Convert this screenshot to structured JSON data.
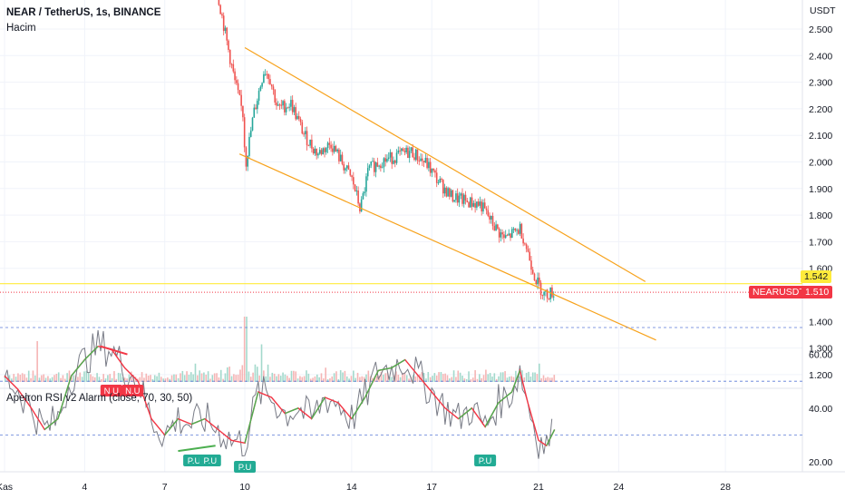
{
  "header": {
    "title": "NEAR / TetherUS, 1s, BINANCE",
    "volume_label": "Hacim",
    "rsi_title": "Apeiron RSI v2 Alarm (close, 70, 30, 50)"
  },
  "price_axis": {
    "unit": "USDT",
    "ticks": [
      "2.500",
      "2.400",
      "2.300",
      "2.200",
      "2.100",
      "2.000",
      "1.900",
      "1.800",
      "1.700",
      "1.600",
      "1.400",
      "1.300",
      "1.200"
    ],
    "tick_values": [
      2.5,
      2.4,
      2.3,
      2.2,
      2.1,
      2.0,
      1.9,
      1.8,
      1.7,
      1.6,
      1.4,
      1.3,
      1.2
    ]
  },
  "price_tags": {
    "level_value": "1.542",
    "current_symbol": "NEARUSDT",
    "current_value": "1.510",
    "level_color": "#ffeb3b",
    "current_color": "#f23645"
  },
  "rsi_axis": {
    "ticks": [
      "60.00",
      "40.00",
      "20.00"
    ],
    "tick_values": [
      60,
      40,
      20
    ],
    "levels": [
      70,
      50,
      30
    ]
  },
  "time_axis": {
    "labels": [
      "Kas",
      "4",
      "7",
      "10",
      "14",
      "17",
      "21",
      "24",
      "28"
    ],
    "days": [
      1,
      4,
      7,
      10,
      14,
      17,
      21,
      24,
      28
    ]
  },
  "signals": {
    "bear_label": "N.U",
    "bull_label": "P.U",
    "bear_color": "#f23645",
    "bull_color": "#22ab94"
  },
  "chart_data": {
    "type": "candlestick",
    "title": "NEAR / TetherUS, 1s, BINANCE",
    "x_unit": "day of November",
    "y_unit": "USDT",
    "ylim": [
      1.15,
      2.61
    ],
    "price_path": [
      {
        "x": 9.0,
        "y": 2.61
      },
      {
        "x": 9.3,
        "y": 2.45
      },
      {
        "x": 9.6,
        "y": 2.3
      },
      {
        "x": 9.9,
        "y": 2.18
      },
      {
        "x": 10.0,
        "y": 1.99
      },
      {
        "x": 10.3,
        "y": 2.18
      },
      {
        "x": 10.7,
        "y": 2.35
      },
      {
        "x": 10.9,
        "y": 2.32
      },
      {
        "x": 11.2,
        "y": 2.2
      },
      {
        "x": 11.7,
        "y": 2.22
      },
      {
        "x": 12.2,
        "y": 2.1
      },
      {
        "x": 12.7,
        "y": 2.03
      },
      {
        "x": 13.2,
        "y": 2.07
      },
      {
        "x": 13.6,
        "y": 2.0
      },
      {
        "x": 14.0,
        "y": 1.93
      },
      {
        "x": 14.3,
        "y": 1.82
      },
      {
        "x": 14.6,
        "y": 1.97
      },
      {
        "x": 15.0,
        "y": 2.0
      },
      {
        "x": 15.6,
        "y": 2.02
      },
      {
        "x": 16.2,
        "y": 2.04
      },
      {
        "x": 16.8,
        "y": 1.99
      },
      {
        "x": 17.2,
        "y": 1.93
      },
      {
        "x": 17.7,
        "y": 1.87
      },
      {
        "x": 18.3,
        "y": 1.85
      },
      {
        "x": 18.8,
        "y": 1.84
      },
      {
        "x": 19.3,
        "y": 1.76
      },
      {
        "x": 19.7,
        "y": 1.71
      },
      {
        "x": 20.3,
        "y": 1.75
      },
      {
        "x": 20.6,
        "y": 1.65
      },
      {
        "x": 20.9,
        "y": 1.55
      },
      {
        "x": 21.2,
        "y": 1.5
      },
      {
        "x": 21.5,
        "y": 1.51
      }
    ],
    "trendlines": [
      {
        "name": "upper",
        "color": "#f7a21b",
        "from": {
          "x": 10.0,
          "y": 2.43
        },
        "to": {
          "x": 25.0,
          "y": 1.55
        }
      },
      {
        "name": "lower",
        "color": "#f7a21b",
        "from": {
          "x": 9.8,
          "y": 2.03
        },
        "to": {
          "x": 25.4,
          "y": 1.33
        }
      }
    ],
    "horizontal_level": 1.542,
    "current_price": 1.51,
    "volume_spikes": [
      {
        "x": 2.2,
        "v": 1.0
      },
      {
        "x": 8.1,
        "v": 0.45
      },
      {
        "x": 10.0,
        "v": 1.6
      },
      {
        "x": 10.6,
        "v": 0.7
      },
      {
        "x": 13.0,
        "v": 0.35
      },
      {
        "x": 19.0,
        "v": 0.3
      },
      {
        "x": 21.0,
        "v": 0.45
      }
    ],
    "rsi": {
      "title": "Apeiron RSI v2 Alarm (close, 70, 30, 50)",
      "levels": [
        70,
        50,
        30
      ],
      "ylim": [
        15,
        72
      ],
      "values": [
        {
          "x": 1.0,
          "y": 52
        },
        {
          "x": 1.5,
          "y": 47
        },
        {
          "x": 2.0,
          "y": 40
        },
        {
          "x": 2.5,
          "y": 32
        },
        {
          "x": 3.0,
          "y": 36
        },
        {
          "x": 3.5,
          "y": 52
        },
        {
          "x": 4.0,
          "y": 58
        },
        {
          "x": 4.5,
          "y": 63
        },
        {
          "x": 5.0,
          "y": 62
        },
        {
          "x": 5.5,
          "y": 55
        },
        {
          "x": 6.0,
          "y": 50
        },
        {
          "x": 6.5,
          "y": 36
        },
        {
          "x": 7.0,
          "y": 30
        },
        {
          "x": 7.5,
          "y": 36
        },
        {
          "x": 8.0,
          "y": 34
        },
        {
          "x": 8.5,
          "y": 36
        },
        {
          "x": 9.0,
          "y": 32
        },
        {
          "x": 9.5,
          "y": 28
        },
        {
          "x": 10.0,
          "y": 27
        },
        {
          "x": 10.5,
          "y": 46
        },
        {
          "x": 11.0,
          "y": 44
        },
        {
          "x": 11.5,
          "y": 38
        },
        {
          "x": 12.0,
          "y": 40
        },
        {
          "x": 12.5,
          "y": 36
        },
        {
          "x": 13.0,
          "y": 44
        },
        {
          "x": 13.5,
          "y": 42
        },
        {
          "x": 14.0,
          "y": 36
        },
        {
          "x": 14.5,
          "y": 44
        },
        {
          "x": 15.0,
          "y": 54
        },
        {
          "x": 15.5,
          "y": 55
        },
        {
          "x": 16.0,
          "y": 58
        },
        {
          "x": 16.5,
          "y": 52
        },
        {
          "x": 17.0,
          "y": 46
        },
        {
          "x": 17.5,
          "y": 40
        },
        {
          "x": 18.0,
          "y": 36
        },
        {
          "x": 18.5,
          "y": 40
        },
        {
          "x": 19.0,
          "y": 33
        },
        {
          "x": 19.5,
          "y": 42
        },
        {
          "x": 20.0,
          "y": 46
        },
        {
          "x": 20.3,
          "y": 54
        },
        {
          "x": 20.6,
          "y": 42
        },
        {
          "x": 21.0,
          "y": 28
        },
        {
          "x": 21.3,
          "y": 26
        },
        {
          "x": 21.6,
          "y": 32
        }
      ]
    },
    "signals": [
      {
        "type": "N.U",
        "x": 5.0
      },
      {
        "type": "N.U",
        "x": 5.8
      },
      {
        "type": "P.U",
        "x": 8.1
      },
      {
        "type": "P.U",
        "x": 8.7
      },
      {
        "type": "P.U",
        "x": 10.0
      },
      {
        "type": "P.U",
        "x": 19.0
      }
    ]
  }
}
